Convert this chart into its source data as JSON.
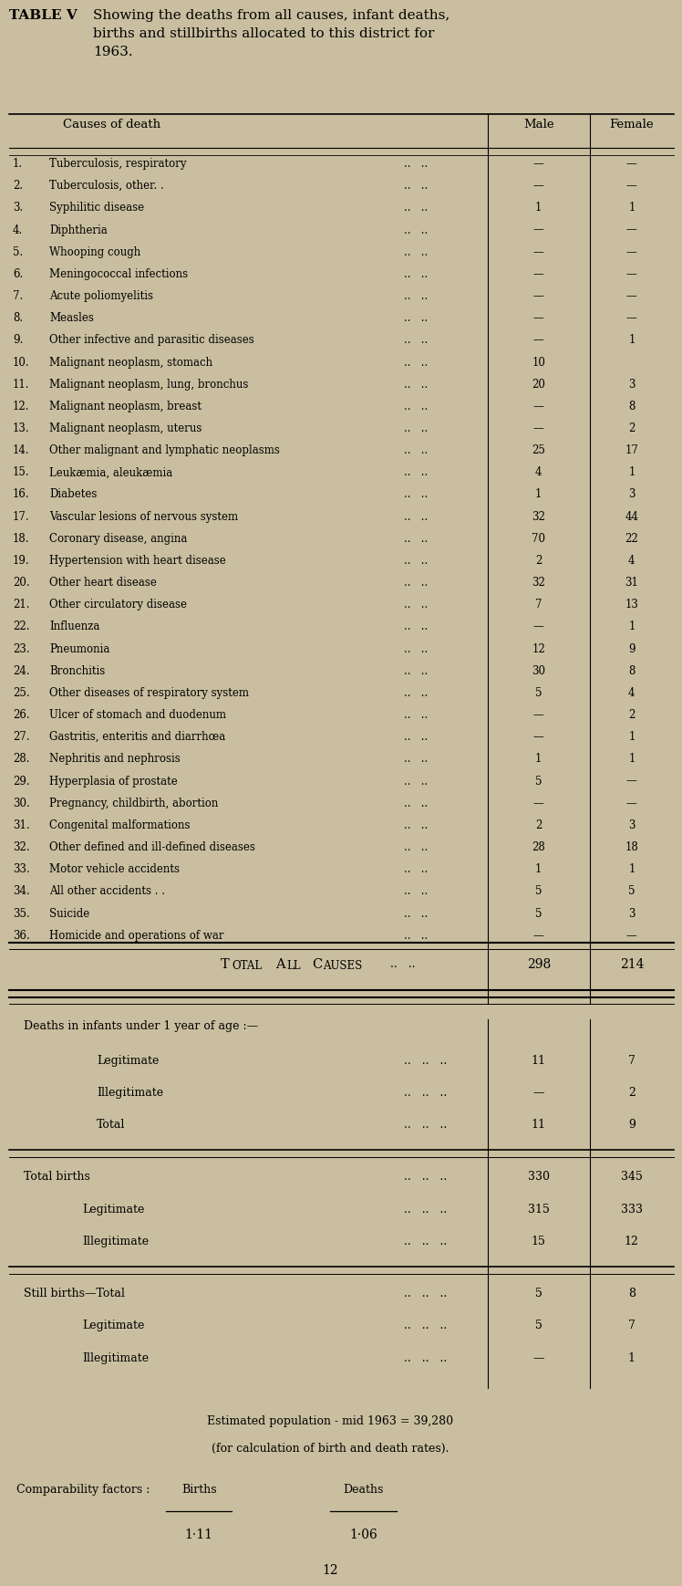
{
  "bg_color": "#c9be9f",
  "rows": [
    [
      "1.",
      "Tuberculosis, respiratory",
      "..",
      "..",
      "..",
      "—",
      "—"
    ],
    [
      "2.",
      "Tuberculosis, other. .",
      "..",
      "..",
      "..",
      "—",
      "—"
    ],
    [
      "3.",
      "Syphilitic disease",
      "..",
      "..",
      "..",
      "1",
      "1"
    ],
    [
      "4.",
      "Diphtheria",
      "..",
      "..",
      "..",
      "—",
      "—"
    ],
    [
      "5.",
      "Whooping cough",
      "..",
      "..",
      "..",
      "—",
      "—"
    ],
    [
      "6.",
      "Meningococcal infections",
      "..",
      "..",
      "..",
      "—",
      "—"
    ],
    [
      "7.",
      "Acute poliomyelitis",
      "..",
      "..",
      "..",
      "—",
      "—"
    ],
    [
      "8.",
      "Measles",
      "..",
      "..",
      "..",
      "—",
      "—"
    ],
    [
      "9.",
      "Other infective and parasitic diseases",
      "..",
      "..",
      "..",
      "—",
      "1"
    ],
    [
      "10.",
      "Malignant neoplasm, stomach",
      "..",
      "..",
      "..",
      "10",
      ""
    ],
    [
      "11.",
      "Malignant neoplasm, lung, bronchus",
      "..",
      "..",
      "..",
      "20",
      "3"
    ],
    [
      "12.",
      "Malignant neoplasm, breast",
      "..",
      "..",
      "..",
      "—",
      "8"
    ],
    [
      "13.",
      "Malignant neoplasm, uterus",
      "..",
      "..",
      ":",
      "—",
      "2"
    ],
    [
      "14.",
      "Other malignant and lymphatic neoplasms",
      "..",
      "..",
      "..",
      "25",
      "17"
    ],
    [
      "15.",
      "Leukæmia, aleukæmia",
      "..",
      "..",
      "..",
      "4",
      "1"
    ],
    [
      "16.",
      "Diabetes",
      "..",
      "..",
      "..",
      "1",
      "3"
    ],
    [
      "17.",
      "Vascular lesions of nervous system",
      "..",
      "..",
      "..",
      "32",
      "44"
    ],
    [
      "18.",
      "Coronary disease, angina",
      "..",
      "..",
      "..",
      "70",
      "22"
    ],
    [
      "19.",
      "Hypertension with heart disease",
      "..",
      "..",
      "..",
      "2",
      "4"
    ],
    [
      "20.",
      "Other heart disease",
      "..",
      "..",
      "..",
      "32",
      "31"
    ],
    [
      "21.",
      "Other circulatory disease",
      "..",
      "..",
      "..",
      "7",
      "13"
    ],
    [
      "22.",
      "Influenza",
      "..",
      "..",
      "..",
      "—",
      "1"
    ],
    [
      "23.",
      "Pneumonia",
      "..",
      "..",
      "..",
      "12",
      "9"
    ],
    [
      "24.",
      "Bronchitis",
      "..",
      "..",
      "..",
      "30",
      "8"
    ],
    [
      "25.",
      "Other diseases of respiratory system",
      "..",
      "..",
      "..",
      "5",
      "4"
    ],
    [
      "26.",
      "Ulcer of stomach and duodenum",
      "..",
      "..",
      "..",
      "—",
      "2"
    ],
    [
      "27.",
      "Gastritis, enteritis and diarrhœa",
      "..",
      "..",
      "..",
      "—",
      "1"
    ],
    [
      "28.",
      "Nephritis and nephrosis",
      "..",
      "..",
      "..",
      "1",
      "1"
    ],
    [
      "29.",
      "Hyperplasia of prostate",
      "..",
      "..",
      "..",
      "5",
      "—"
    ],
    [
      "30.",
      "Pregnancy, childbirth, abortion",
      "..",
      "..",
      "..",
      "—",
      "—"
    ],
    [
      "31.",
      "Congenital malformations",
      "..",
      "..",
      "..",
      "2",
      "3"
    ],
    [
      "32.",
      "Other defined and ill-defined diseases",
      "..",
      "..",
      "..",
      "28",
      "18"
    ],
    [
      "33.",
      "Motor vehicle accidents",
      "..",
      "..",
      "..",
      "1",
      "1"
    ],
    [
      "34.",
      "All other accidents . .",
      "..",
      "..",
      "..",
      "5",
      "5"
    ],
    [
      "35.",
      "Suicide",
      "..",
      "..",
      "..",
      "5",
      "3"
    ],
    [
      "36.",
      "Homicide and operations of war",
      "..",
      "..",
      "..",
      "—",
      "—"
    ]
  ],
  "total_male": "298",
  "total_female": "214",
  "infant_rows": [
    [
      "Legitimate",
      "..",
      "..",
      "..",
      "11",
      "7"
    ],
    [
      "Illegitimate",
      "..",
      "..",
      "..",
      "—",
      "2"
    ],
    [
      "Total",
      "..",
      "..",
      "..",
      "11",
      "9"
    ]
  ],
  "births_rows": [
    [
      "Total births",
      "..",
      "..",
      "..",
      "330",
      "345"
    ],
    [
      "Legitimate",
      "..",
      "..",
      "..",
      "315",
      "333"
    ],
    [
      "Illegitimate",
      "..",
      "..",
      "..",
      "15",
      "12"
    ]
  ],
  "stillbirths_rows": [
    [
      "Still births—Total",
      "..",
      "..",
      "..",
      "5",
      "8"
    ],
    [
      "Legitimate",
      "..",
      "..",
      "..",
      "5",
      "7"
    ],
    [
      "Illegitimate",
      "..",
      "..",
      "..",
      "—",
      "1"
    ]
  ]
}
